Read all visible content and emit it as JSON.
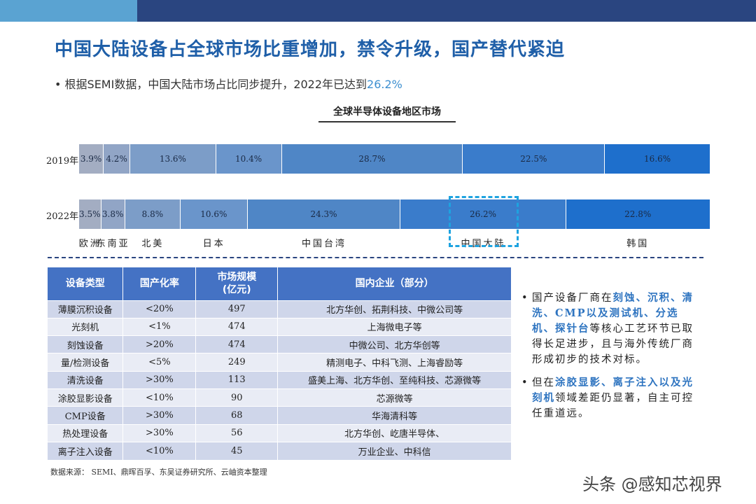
{
  "title": "中国大陆设备占全球市场比重增加，禁令升级，国产替代紧迫",
  "bullet": {
    "text": "根据SEMI数据，中国大陆市场占比同步提升，2022年已达到",
    "highlight": "26.2%"
  },
  "chart_data": {
    "type": "bar",
    "stacked": true,
    "orientation": "horizontal",
    "title": "全球半导体设备地区市场",
    "categories": [
      "2019年",
      "2022年"
    ],
    "series": [
      {
        "name": "欧洲",
        "values": [
          3.9,
          3.5
        ],
        "labels": [
          "3.9%",
          "3.5%"
        ],
        "color": "#a3adc2"
      },
      {
        "name": "东南亚",
        "values": [
          4.2,
          3.8
        ],
        "labels": [
          "4.2%",
          "3.8%"
        ],
        "color": "#91a5c6"
      },
      {
        "name": "北美",
        "values": [
          13.6,
          8.8
        ],
        "labels": [
          "13.6%",
          "8.8%"
        ],
        "color": "#7c9dc8"
      },
      {
        "name": "日本",
        "values": [
          10.4,
          10.6
        ],
        "labels": [
          "10.4%",
          "10.6%"
        ],
        "color": "#6a95cb"
      },
      {
        "name": "中国台湾",
        "values": [
          28.7,
          24.3
        ],
        "labels": [
          "28.7%",
          "24.3%"
        ],
        "color": "#4f86c6"
      },
      {
        "name": "中国大陆",
        "values": [
          22.5,
          26.2
        ],
        "labels": [
          "22.5%",
          "26.2%"
        ],
        "color": "#3a7ccb"
      },
      {
        "name": "韩国",
        "values": [
          16.6,
          22.8
        ],
        "labels": [
          "16.6%",
          "22.8%"
        ],
        "color": "#1e6fcc"
      }
    ],
    "highlight": "中国大陆"
  },
  "table": {
    "headers": [
      "设备类型",
      "国产化率",
      "市场规模\n(亿元)",
      "国内企业（部分）"
    ],
    "rows": [
      [
        "薄膜沉积设备",
        "<20%",
        "497",
        "北方华创、拓荆科技、中微公司等"
      ],
      [
        "光刻机",
        "<1%",
        "474",
        "上海微电子等"
      ],
      [
        "刻蚀设备",
        ">20%",
        "474",
        "中微公司、北方华创等"
      ],
      [
        "量/检测设备",
        "<5%",
        "249",
        "精测电子、中科飞测、上海睿励等"
      ],
      [
        "清洗设备",
        ">30%",
        "113",
        "盛美上海、北方华创、至纯科技、芯源微等"
      ],
      [
        "涂胶显影设备",
        "<10%",
        "90",
        "芯源微等"
      ],
      [
        "CMP设备",
        ">30%",
        "68",
        "华海清科等"
      ],
      [
        "热处理设备",
        ">30%",
        "56",
        "北方华创、屹唐半导体、"
      ],
      [
        "离子注入设备",
        "<10%",
        "45",
        "万业企业、中科信"
      ]
    ]
  },
  "side": {
    "p1": [
      {
        "t": "国产设备厂商在",
        "hl": false
      },
      {
        "t": "刻蚀、沉积、清洗、CMP以及测试机、分选机、探针台",
        "hl": true
      },
      {
        "t": "等核心工艺环节已取得长足进步，且与海外传统厂商形成初步的技术对标。",
        "hl": false
      }
    ],
    "p2": [
      {
        "t": "但在",
        "hl": false
      },
      {
        "t": "涂胶显影、离子注入以及光刻机",
        "hl": true
      },
      {
        "t": "领域差距仍显著，自主可控任重道远。",
        "hl": false
      }
    ]
  },
  "source": "数据来源： SEMI、鼎晖百孚、东吴证券研究所、云岫资本整理",
  "watermark": "头条 @感知芯视界"
}
